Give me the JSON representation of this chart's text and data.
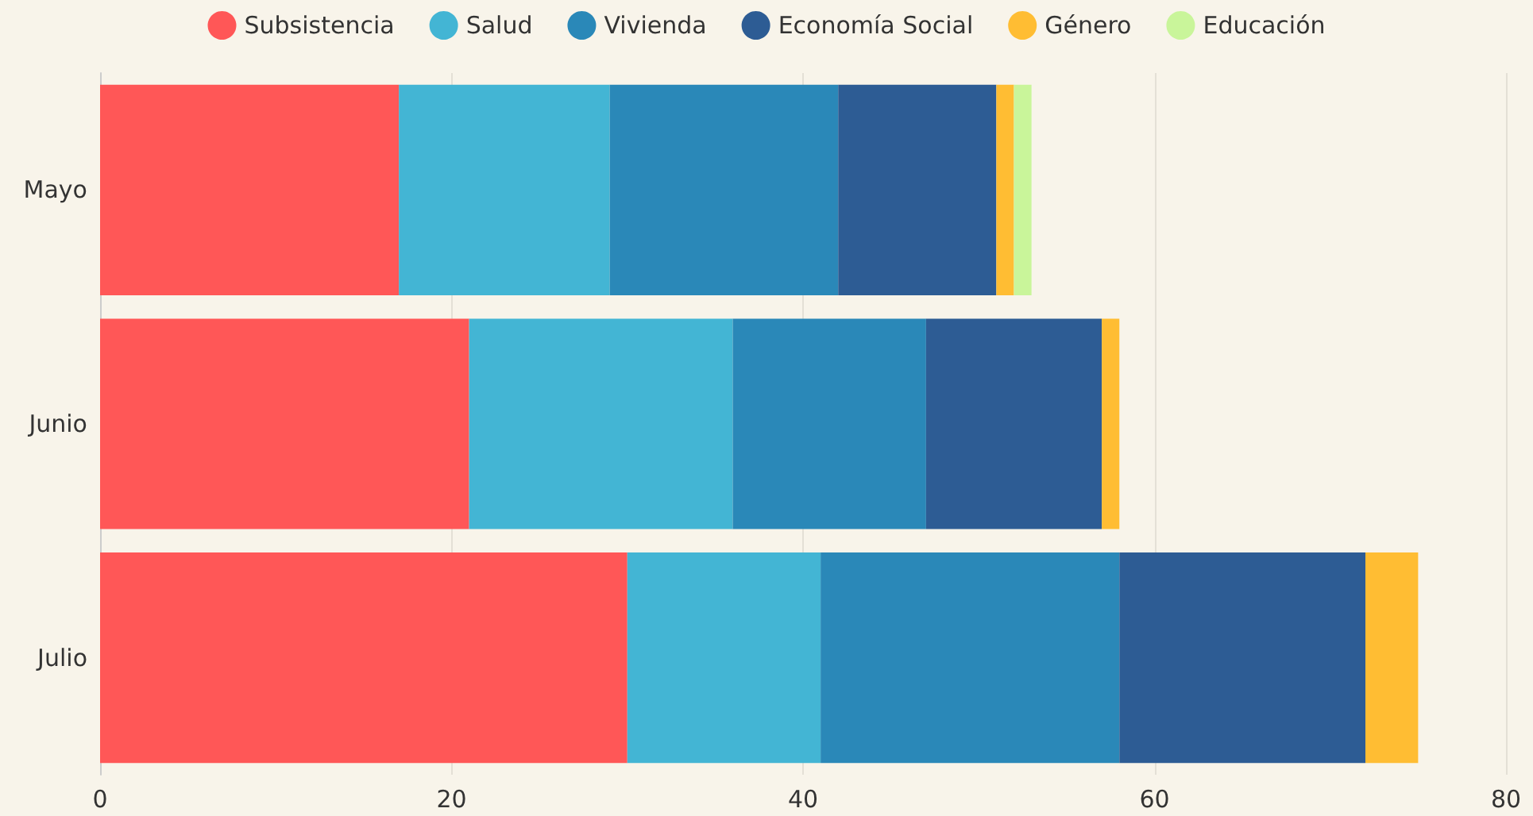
{
  "chart_data": {
    "type": "bar",
    "orientation": "horizontal",
    "stacked": true,
    "categories": [
      "Mayo",
      "Junio",
      "Julio"
    ],
    "series": [
      {
        "name": "Subsistencia",
        "color": "#ff5757",
        "values": [
          17,
          21,
          30
        ]
      },
      {
        "name": "Salud",
        "color": "#43b5d4",
        "values": [
          12,
          15,
          11
        ]
      },
      {
        "name": "Vivienda",
        "color": "#2a88b8",
        "values": [
          13,
          11,
          17
        ]
      },
      {
        "name": "Economía Social",
        "color": "#2d5c94",
        "values": [
          9,
          10,
          14
        ]
      },
      {
        "name": "Género",
        "color": "#ffbd33",
        "values": [
          1,
          1,
          3
        ]
      },
      {
        "name": "Educación",
        "color": "#c9f59a",
        "values": [
          1,
          null,
          null
        ]
      }
    ],
    "xlim": [
      0,
      80
    ],
    "xticks": [
      0,
      20,
      40,
      60,
      80
    ],
    "grid": "x",
    "legend": "top"
  }
}
